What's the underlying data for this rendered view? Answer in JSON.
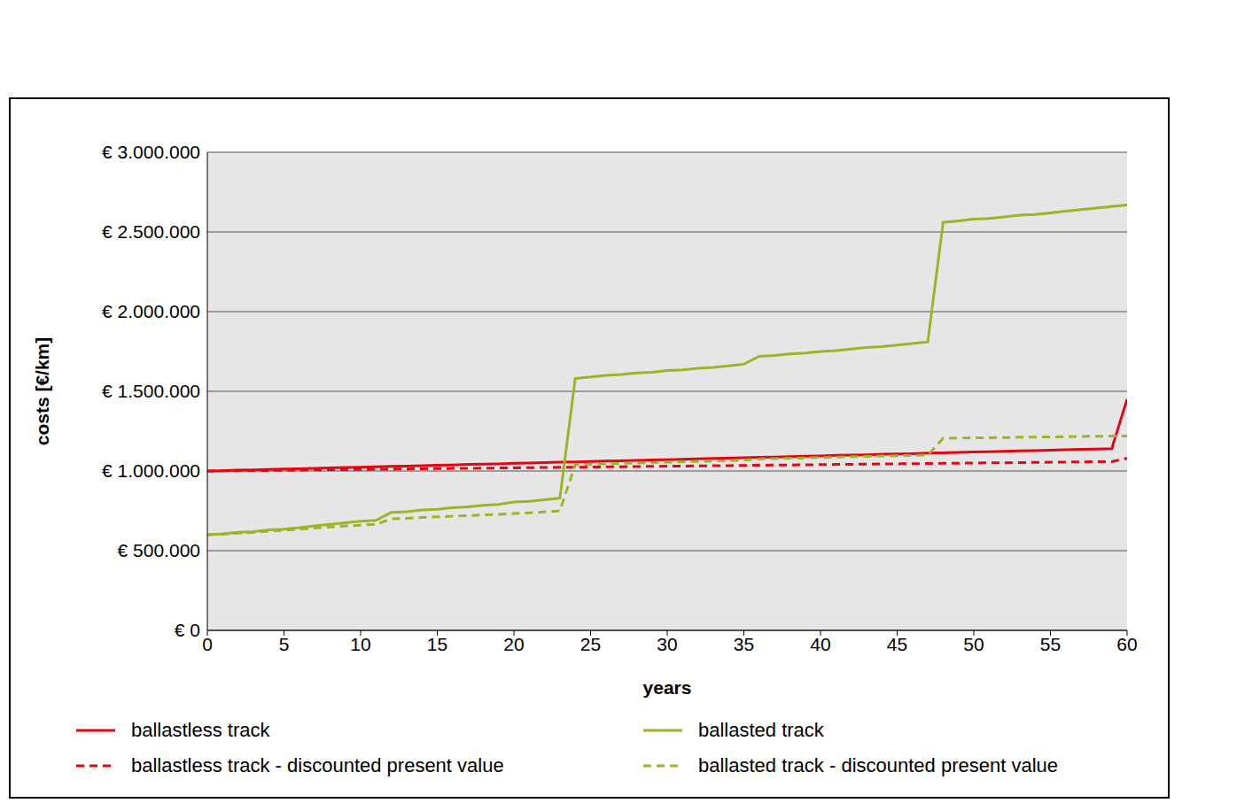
{
  "chart_data": {
    "type": "line",
    "x_label": "years",
    "y_label": "costs [€/km]",
    "x": [
      0,
      1,
      2,
      3,
      4,
      5,
      6,
      7,
      8,
      9,
      10,
      11,
      12,
      13,
      14,
      15,
      16,
      17,
      18,
      19,
      20,
      21,
      22,
      23,
      24,
      25,
      26,
      27,
      28,
      29,
      30,
      31,
      32,
      33,
      34,
      35,
      36,
      37,
      38,
      39,
      40,
      41,
      42,
      43,
      44,
      45,
      46,
      47,
      48,
      49,
      50,
      51,
      52,
      53,
      54,
      55,
      56,
      57,
      58,
      59,
      60
    ],
    "xlim": [
      0,
      60
    ],
    "xticks": [
      0,
      5,
      10,
      15,
      20,
      25,
      30,
      35,
      40,
      45,
      50,
      55,
      60
    ],
    "ylim": [
      0,
      3000000
    ],
    "yticks": [
      {
        "value": 0,
        "label": "€ 0"
      },
      {
        "value": 500000,
        "label": "€ 500.000"
      },
      {
        "value": 1000000,
        "label": "€ 1.000.000"
      },
      {
        "value": 1500000,
        "label": "€ 1.500.000"
      },
      {
        "value": 2000000,
        "label": "€ 2.000.000"
      },
      {
        "value": 2500000,
        "label": "€ 2.500.000"
      },
      {
        "value": 3000000,
        "label": "€ 3.000.000"
      }
    ],
    "grid": true,
    "legend": "bottom",
    "series": [
      {
        "name": "ballastless track",
        "color": "#e30613",
        "line_style": "solid",
        "values": [
          1000000,
          1002000,
          1005000,
          1007000,
          1010000,
          1012000,
          1014000,
          1017000,
          1019000,
          1022000,
          1024000,
          1026000,
          1029000,
          1031000,
          1033000,
          1036000,
          1038000,
          1041000,
          1043000,
          1045000,
          1048000,
          1050000,
          1053000,
          1055000,
          1057000,
          1060000,
          1062000,
          1064000,
          1067000,
          1069000,
          1071000,
          1074000,
          1076000,
          1079000,
          1081000,
          1083000,
          1086000,
          1088000,
          1090000,
          1093000,
          1095000,
          1098000,
          1100000,
          1102000,
          1105000,
          1107000,
          1109000,
          1112000,
          1114000,
          1117000,
          1119000,
          1121000,
          1124000,
          1126000,
          1128000,
          1131000,
          1133000,
          1136000,
          1138000,
          1140000,
          1450000
        ]
      },
      {
        "name": "ballasted track",
        "color": "#9bb526",
        "line_style": "solid",
        "values": [
          600000,
          605000,
          615000,
          620000,
          630000,
          635000,
          645000,
          655000,
          665000,
          675000,
          685000,
          690000,
          740000,
          745000,
          755000,
          760000,
          770000,
          775000,
          785000,
          790000,
          805000,
          810000,
          820000,
          830000,
          1580000,
          1590000,
          1600000,
          1605000,
          1615000,
          1620000,
          1630000,
          1635000,
          1645000,
          1650000,
          1660000,
          1670000,
          1720000,
          1725000,
          1735000,
          1740000,
          1750000,
          1755000,
          1765000,
          1775000,
          1780000,
          1790000,
          1800000,
          1810000,
          2560000,
          2570000,
          2580000,
          2585000,
          2595000,
          2605000,
          2610000,
          2620000,
          2630000,
          2640000,
          2650000,
          2660000,
          2670000
        ]
      },
      {
        "name": "ballastless track - discounted present value",
        "color": "#e30613",
        "line_style": "dashed",
        "values": [
          1000000,
          1001000,
          1002000,
          1003000,
          1004000,
          1005000,
          1006000,
          1007000,
          1008000,
          1009000,
          1010000,
          1011000,
          1012000,
          1013000,
          1014000,
          1015000,
          1016000,
          1017000,
          1018000,
          1019000,
          1020000,
          1021000,
          1022000,
          1023000,
          1024000,
          1025000,
          1026000,
          1027000,
          1028000,
          1029000,
          1030000,
          1031000,
          1032000,
          1033000,
          1034000,
          1035000,
          1036000,
          1037000,
          1038000,
          1039000,
          1040000,
          1041000,
          1042000,
          1043000,
          1044000,
          1045000,
          1046000,
          1047000,
          1048000,
          1049000,
          1050000,
          1051000,
          1052000,
          1053000,
          1054000,
          1055000,
          1056000,
          1057000,
          1058000,
          1059000,
          1080000
        ]
      },
      {
        "name": "ballasted track - discounted present value",
        "color": "#9bb526",
        "line_style": "dashed",
        "values": [
          600000,
          603000,
          610000,
          615000,
          622000,
          628000,
          635000,
          642000,
          648000,
          655000,
          660000,
          665000,
          700000,
          703000,
          708000,
          712000,
          716000,
          720000,
          724000,
          728000,
          733000,
          738000,
          743000,
          750000,
          1040000,
          1042000,
          1045000,
          1048000,
          1050000,
          1053000,
          1055000,
          1058000,
          1060000,
          1063000,
          1065000,
          1068000,
          1075000,
          1078000,
          1080000,
          1082000,
          1085000,
          1087000,
          1090000,
          1092000,
          1094000,
          1096000,
          1098000,
          1100000,
          1205000,
          1207000,
          1208000,
          1209000,
          1210000,
          1212000,
          1213000,
          1214000,
          1215000,
          1217000,
          1218000,
          1219000,
          1220000
        ]
      }
    ]
  }
}
